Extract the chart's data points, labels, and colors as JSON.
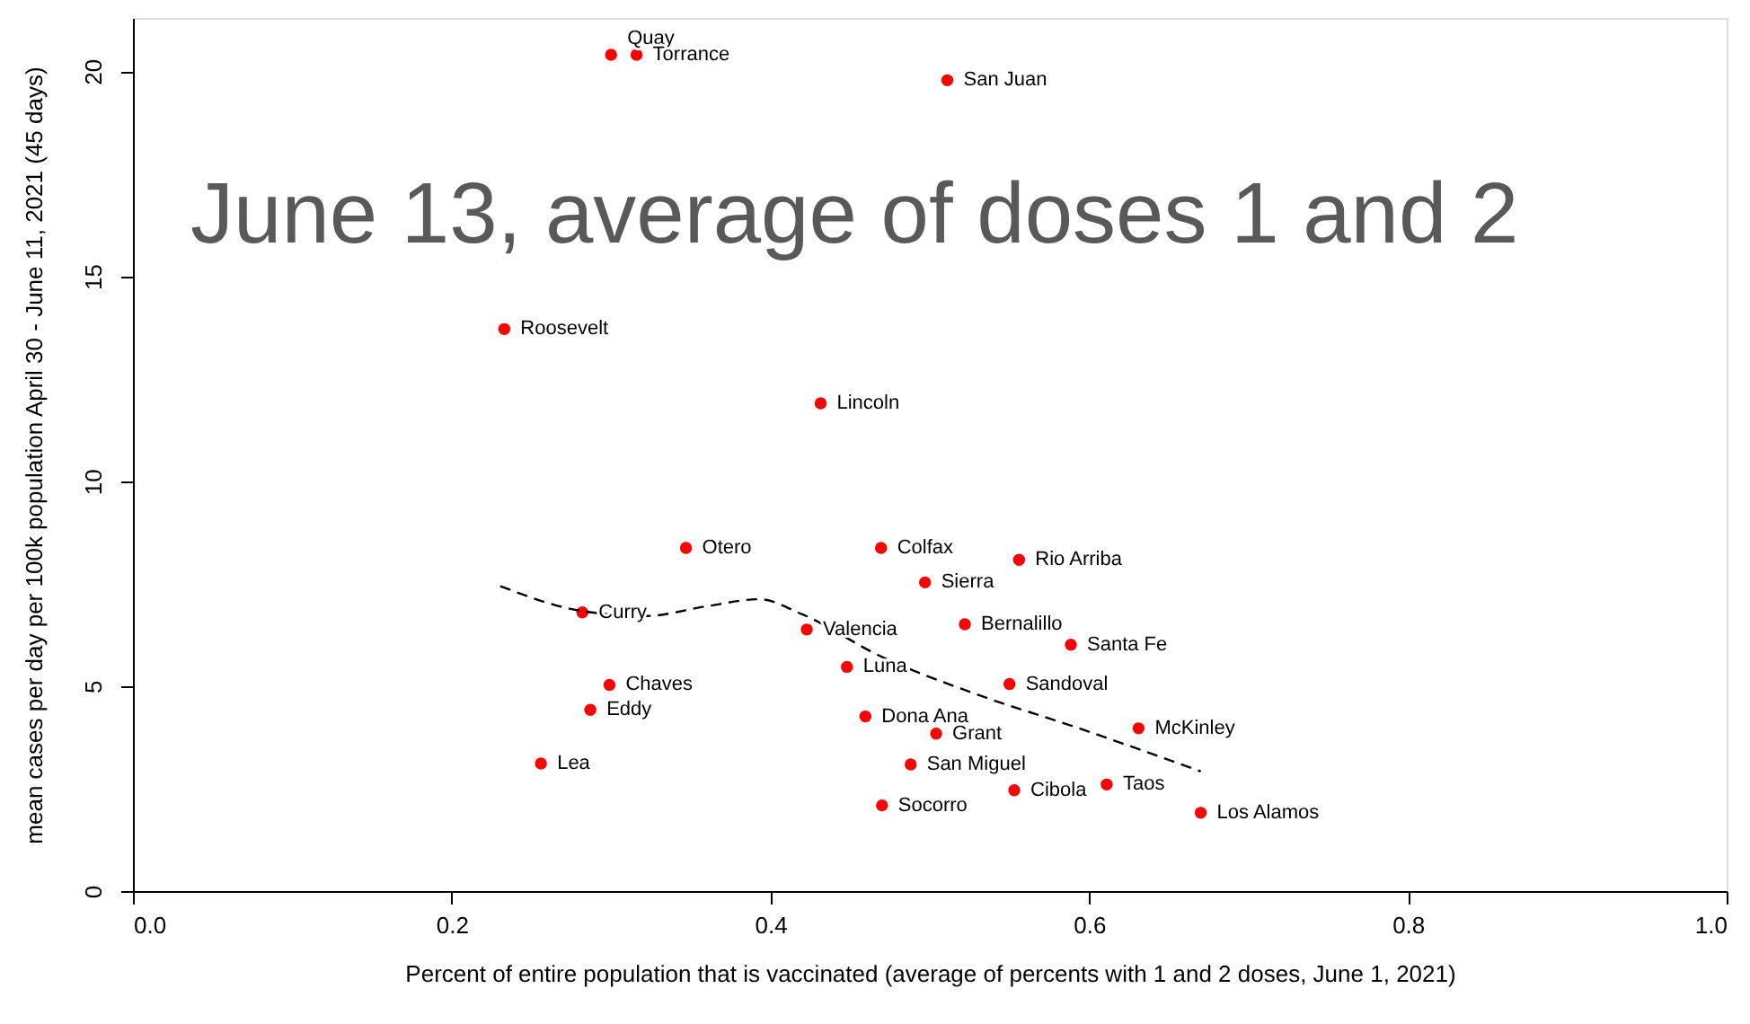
{
  "chart_data": {
    "type": "scatter",
    "xlabel": "Percent of entire population that is vaccinated (average of percents with 1 and 2 doses, June 1, 2021)",
    "ylabel": "mean cases per day per 100k population April 30 - June 11, 2021 (45 days)",
    "annotations": [
      "June 13, average of doses 1 and 2"
    ],
    "xlim": [
      0,
      1
    ],
    "xticks": [
      {
        "value": 0,
        "label": "0.0"
      },
      0.2,
      0.4,
      0.6,
      0.8,
      {
        "value": 1,
        "label": "1.0"
      }
    ],
    "ylim": [
      0,
      21.3
    ],
    "yticks": [
      0,
      5,
      10,
      15,
      20
    ],
    "grid": false,
    "series": [
      {
        "type": "scatter",
        "color": "#ff0000",
        "marker": "circle",
        "x": [
          0.3,
          0.316,
          0.511,
          0.233,
          0.4315,
          0.347,
          0.4694,
          0.556,
          0.497,
          0.522,
          0.282,
          0.4228,
          0.5885,
          0.448,
          0.299,
          0.55,
          0.287,
          0.4596,
          0.631,
          0.504,
          0.256,
          0.488,
          0.553,
          0.611,
          0.47,
          0.67
        ],
        "values": [
          20.4,
          20.4,
          19.78,
          13.71,
          11.9,
          8.37,
          8.37,
          8.08,
          7.53,
          6.51,
          6.8,
          6.38,
          6.01,
          5.47,
          5.03,
          5.05,
          4.42,
          4.26,
          3.97,
          3.84,
          3.11,
          3.09,
          2.46,
          2.6,
          2.09,
          1.91
        ],
        "value_labels": [
          "Quay",
          "Torrance",
          "San Juan",
          "Roosevelt",
          "Lincoln",
          "Otero",
          "Colfax",
          "Rio Arriba",
          "Sierra",
          "Bernalillo",
          "Curry",
          "Valencia",
          "Santa Fe",
          "Luna",
          "Chaves",
          "Sandoval",
          "Eddy",
          "Dona Ana",
          "McKinley",
          "Grant",
          "Lea",
          "San Miguel",
          "Cibola",
          "Taos",
          "Socorro",
          "Los Alamos"
        ]
      },
      {
        "type": "line",
        "color": "#000000",
        "line_style": "dashed",
        "marker": "none",
        "x": [
          0.2305,
          0.282,
          0.322,
          0.36,
          0.393,
          0.42,
          0.469,
          0.525,
          0.593,
          0.67
        ],
        "values": [
          7.44,
          6.83,
          6.71,
          6.95,
          7.12,
          6.75,
          5.73,
          4.86,
          3.98,
          2.92
        ]
      }
    ]
  }
}
